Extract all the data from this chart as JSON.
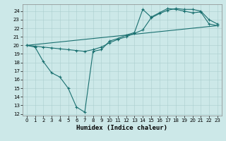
{
  "bg_color": "#cce8e8",
  "grid_color": "#aacece",
  "line_color": "#1a7070",
  "xlabel": "Humidex (Indice chaleur)",
  "xlim": [
    -0.5,
    23.5
  ],
  "ylim": [
    11.8,
    24.8
  ],
  "xticks": [
    0,
    1,
    2,
    3,
    4,
    5,
    6,
    7,
    8,
    9,
    10,
    11,
    12,
    13,
    14,
    15,
    16,
    17,
    18,
    19,
    20,
    21,
    22,
    23
  ],
  "yticks": [
    12,
    13,
    14,
    15,
    16,
    17,
    18,
    19,
    20,
    21,
    22,
    23,
    24
  ],
  "curve1_x": [
    0,
    1,
    2,
    3,
    4,
    5,
    6,
    7,
    8,
    9,
    10,
    11,
    12,
    13,
    14,
    15,
    16,
    17,
    18,
    19,
    20,
    21,
    22,
    23
  ],
  "curve1_y": [
    20.0,
    19.8,
    18.1,
    16.8,
    16.3,
    15.0,
    12.8,
    12.2,
    19.3,
    19.5,
    20.5,
    20.8,
    21.2,
    21.5,
    24.2,
    23.3,
    23.8,
    24.3,
    24.2,
    24.0,
    23.8,
    23.9,
    22.5,
    22.3
  ],
  "curve2_x": [
    0,
    1,
    2,
    3,
    4,
    5,
    6,
    7,
    8,
    9,
    10,
    11,
    12,
    13,
    14,
    15,
    16,
    17,
    18,
    19,
    20,
    21,
    22,
    23
  ],
  "curve2_y": [
    20.0,
    19.9,
    19.8,
    19.7,
    19.6,
    19.5,
    19.4,
    19.3,
    19.5,
    19.8,
    20.3,
    20.7,
    21.0,
    21.4,
    21.8,
    23.2,
    23.7,
    24.1,
    24.3,
    24.2,
    24.2,
    24.0,
    23.0,
    22.5
  ],
  "curve3_x": [
    0,
    23
  ],
  "curve3_y": [
    20.0,
    22.3
  ]
}
